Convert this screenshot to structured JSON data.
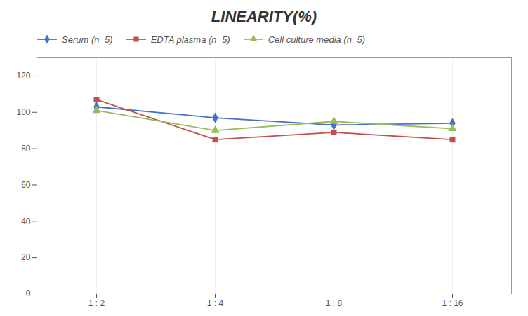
{
  "chart_data": {
    "type": "line",
    "title": "LINEARITY(%)",
    "categories": [
      "1 : 2",
      "1 : 4",
      "1 : 8",
      "1 : 16"
    ],
    "series": [
      {
        "name": "Serum (n=5)",
        "color": "#4472c4",
        "marker": "diamond",
        "values": [
          103,
          97,
          93,
          94
        ]
      },
      {
        "name": "EDTA plasma (n=5)",
        "color": "#c0504d",
        "marker": "square",
        "values": [
          107,
          85,
          89,
          85
        ]
      },
      {
        "name": "Cell culture media (n=5)",
        "color": "#9bbb59",
        "marker": "triangle",
        "values": [
          101,
          90,
          95,
          91
        ]
      }
    ],
    "ylim": [
      0,
      130
    ],
    "yticks": [
      0,
      20,
      40,
      60,
      80,
      100,
      120
    ],
    "grid": "x",
    "legend": "upper left"
  }
}
